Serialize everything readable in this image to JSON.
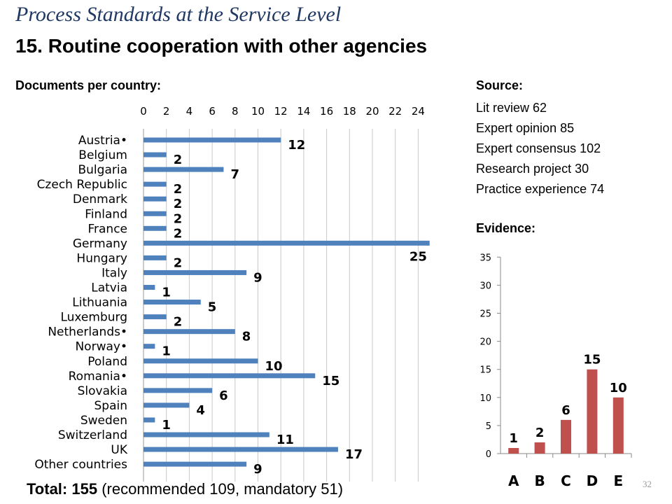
{
  "slide": {
    "title_italic": "Process Standards at the Service Level",
    "title_bold": "15. Routine cooperation with other agencies",
    "documents_label": "Documents per country:",
    "source_label": "Source:",
    "source_items": [
      "Lit review 62",
      "Expert opinion 85",
      "Expert consensus 102",
      "Research project 30",
      "Practice experience 74"
    ],
    "evidence_label": "Evidence:",
    "total_label": "Total:",
    "total_value": "155",
    "total_note": "(recommended 109, mandatory 51)",
    "page_number": "32"
  },
  "chart_data": [
    {
      "type": "bar",
      "orientation": "horizontal",
      "categories": [
        "Austria•",
        "Belgium",
        "Bulgaria",
        "Czech Republic",
        "Denmark",
        "Finland",
        "France",
        "Germany",
        "Hungary",
        "Italy",
        "Latvia",
        "Lithuania",
        "Luxemburg",
        "Netherlands•",
        "Norway•",
        "Poland",
        "Romania•",
        "Slovakia",
        "Spain",
        "Sweden",
        "Switzerland",
        "UK",
        "Other countries"
      ],
      "values": [
        12,
        2,
        7,
        2,
        2,
        2,
        2,
        25,
        2,
        9,
        1,
        5,
        2,
        8,
        1,
        10,
        15,
        6,
        4,
        1,
        11,
        17,
        9
      ],
      "xlim": [
        0,
        24
      ],
      "xticks": [
        "0",
        "2",
        "4",
        "6",
        "8",
        "10",
        "12",
        "14",
        "16",
        "18",
        "20",
        "22",
        "24"
      ],
      "axis_position": "top",
      "grid": true,
      "color": "#4f81bd"
    },
    {
      "type": "bar",
      "categories": [
        "A",
        "B",
        "C",
        "D",
        "E"
      ],
      "values": [
        1,
        2,
        6,
        15,
        10
      ],
      "ylim": [
        0,
        35
      ],
      "yticks": [
        "0",
        "5",
        "10",
        "15",
        "20",
        "25",
        "30",
        "35"
      ],
      "grid": false,
      "color": "#c0504d"
    }
  ]
}
